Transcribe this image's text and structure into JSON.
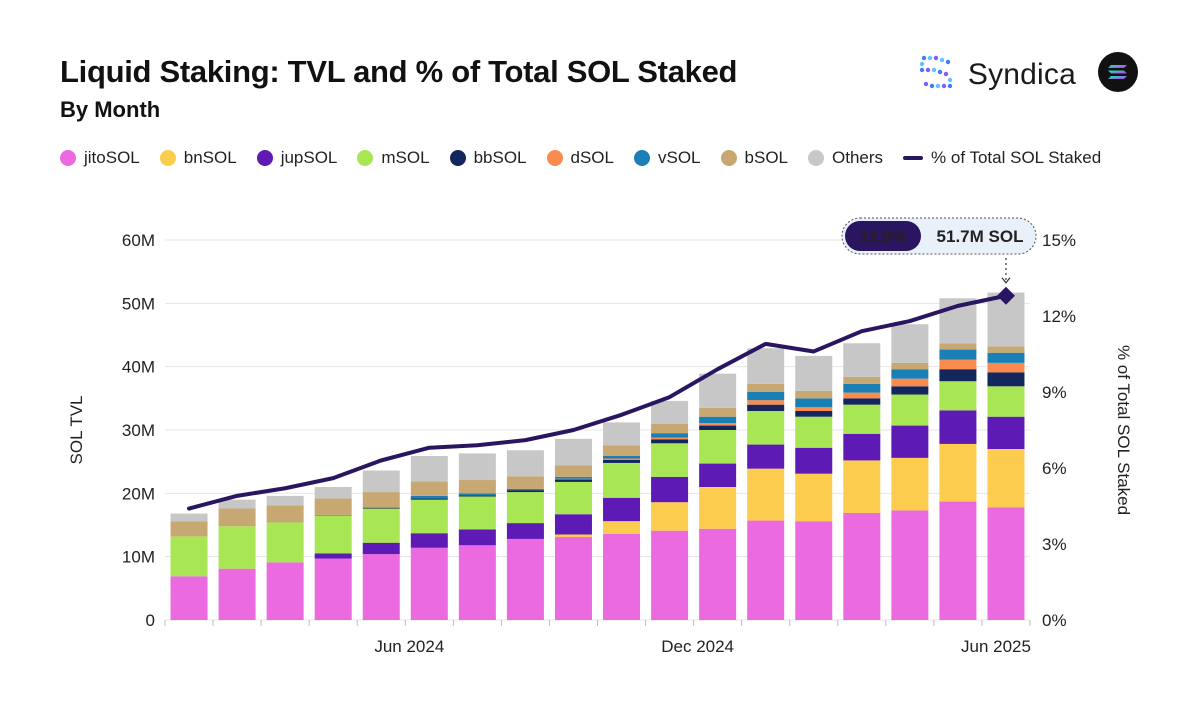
{
  "header": {
    "title": "Liquid Staking: TVL and % of Total SOL Staked",
    "subtitle": "By Month"
  },
  "brand": {
    "name": "Syndica",
    "logo_icon": "syndica-dots-icon",
    "solana_icon": "solana-logo-icon"
  },
  "colors": {
    "jitoSOL": "#EB6AE0",
    "bnSOL": "#FBCC4E",
    "jupSOL": "#5E1AB5",
    "mSOL": "#A8E653",
    "bbSOL": "#13275E",
    "dSOL": "#FB8A4D",
    "vSOL": "#1A7FB4",
    "bSOL": "#C7A872",
    "Others": "#C7C7C7",
    "line": "#2A1560",
    "grid": "#E6E6E6"
  },
  "legend": [
    {
      "label": "jitoSOL",
      "color": "#EB6AE0",
      "kind": "dot"
    },
    {
      "label": "bnSOL",
      "color": "#FBCC4E",
      "kind": "dot"
    },
    {
      "label": "jupSOL",
      "color": "#5E1AB5",
      "kind": "dot"
    },
    {
      "label": "mSOL",
      "color": "#A8E653",
      "kind": "dot"
    },
    {
      "label": "bbSOL",
      "color": "#13275E",
      "kind": "dot"
    },
    {
      "label": "dSOL",
      "color": "#FB8A4D",
      "kind": "dot"
    },
    {
      "label": "vSOL",
      "color": "#1A7FB4",
      "kind": "dot"
    },
    {
      "label": "bSOL",
      "color": "#C7A872",
      "kind": "dot"
    },
    {
      "label": "Others",
      "color": "#C7C7C7",
      "kind": "dot"
    },
    {
      "label": "% of Total SOL Staked",
      "color": "#2A1560",
      "kind": "line"
    }
  ],
  "chart_data": {
    "type": "bar",
    "stacked": true,
    "secondary_type": "line",
    "ylabel": "SOL TVL",
    "y2label": "% of Total SOL Staked",
    "ylim": [
      0,
      60
    ],
    "y2lim": [
      0,
      15
    ],
    "y_ticks": [
      "0",
      "10M",
      "20M",
      "30M",
      "40M",
      "50M",
      "60M"
    ],
    "y2_ticks": [
      "0%",
      "3%",
      "6%",
      "9%",
      "12%",
      "15%"
    ],
    "x_ticks": [
      {
        "label": "Jun 2024",
        "index": 5
      },
      {
        "label": "Dec 2024",
        "index": 11
      },
      {
        "label": "Jun 2025",
        "index": 17
      }
    ],
    "months": 18,
    "grid": true,
    "legend_position": "top",
    "series": [
      {
        "name": "jitoSOL",
        "values": [
          6.9,
          8.1,
          9.1,
          9.7,
          10.4,
          11.4,
          11.8,
          12.8,
          13.1,
          13.6,
          14.1,
          14.4,
          15.7,
          15.6,
          16.9,
          17.3,
          18.7,
          17.8
        ]
      },
      {
        "name": "bnSOL",
        "values": [
          0,
          0,
          0,
          0,
          0,
          0,
          0,
          0,
          0.4,
          2.0,
          4.5,
          6.6,
          8.2,
          7.5,
          8.3,
          8.3,
          9.1,
          9.2
        ]
      },
      {
        "name": "jupSOL",
        "values": [
          0,
          0,
          0,
          0.8,
          1.8,
          2.3,
          2.5,
          2.5,
          3.2,
          3.7,
          4.0,
          3.7,
          3.8,
          4.1,
          4.2,
          5.1,
          5.3,
          5.1
        ]
      },
      {
        "name": "mSOL",
        "values": [
          6.3,
          6.7,
          6.3,
          6.0,
          5.4,
          5.3,
          5.2,
          4.9,
          5.1,
          5.5,
          5.3,
          5.3,
          5.3,
          4.9,
          4.6,
          4.9,
          4.6,
          4.8
        ]
      },
      {
        "name": "bbSOL",
        "values": [
          0,
          0,
          0,
          0,
          0.1,
          0.2,
          0.2,
          0.3,
          0.4,
          0.5,
          0.6,
          0.7,
          1.0,
          0.9,
          1.0,
          1.3,
          1.9,
          2.2
        ]
      },
      {
        "name": "dSOL",
        "values": [
          0,
          0,
          0,
          0,
          0,
          0,
          0,
          0,
          0.1,
          0.2,
          0.3,
          0.4,
          0.7,
          0.6,
          0.9,
          1.2,
          1.5,
          1.5
        ]
      },
      {
        "name": "vSOL",
        "values": [
          0,
          0,
          0,
          0.1,
          0.1,
          0.4,
          0.3,
          0.2,
          0.3,
          0.4,
          0.7,
          1.0,
          1.3,
          1.4,
          1.4,
          1.5,
          1.6,
          1.6
        ]
      },
      {
        "name": "bSOL",
        "values": [
          2.4,
          2.8,
          2.7,
          2.6,
          2.4,
          2.3,
          2.1,
          2.0,
          1.8,
          1.7,
          1.5,
          1.4,
          1.3,
          1.2,
          1.1,
          1.0,
          1.0,
          1.0
        ]
      },
      {
        "name": "Others",
        "values": [
          1.2,
          1.4,
          1.5,
          1.8,
          3.4,
          4.0,
          4.2,
          4.1,
          4.2,
          3.6,
          3.6,
          5.4,
          5.6,
          5.5,
          5.3,
          6.1,
          7.1,
          8.5
        ]
      }
    ],
    "line_series": {
      "name": "% of Total SOL Staked",
      "values": [
        4.4,
        4.9,
        5.2,
        5.6,
        6.3,
        6.8,
        6.9,
        7.1,
        7.5,
        8.1,
        8.8,
        9.9,
        10.9,
        10.6,
        11.4,
        11.8,
        12.4,
        12.8
      ]
    },
    "annotation": {
      "index": 17,
      "percent_label": "12.8%",
      "tvl_label": "51.7M SOL"
    }
  }
}
